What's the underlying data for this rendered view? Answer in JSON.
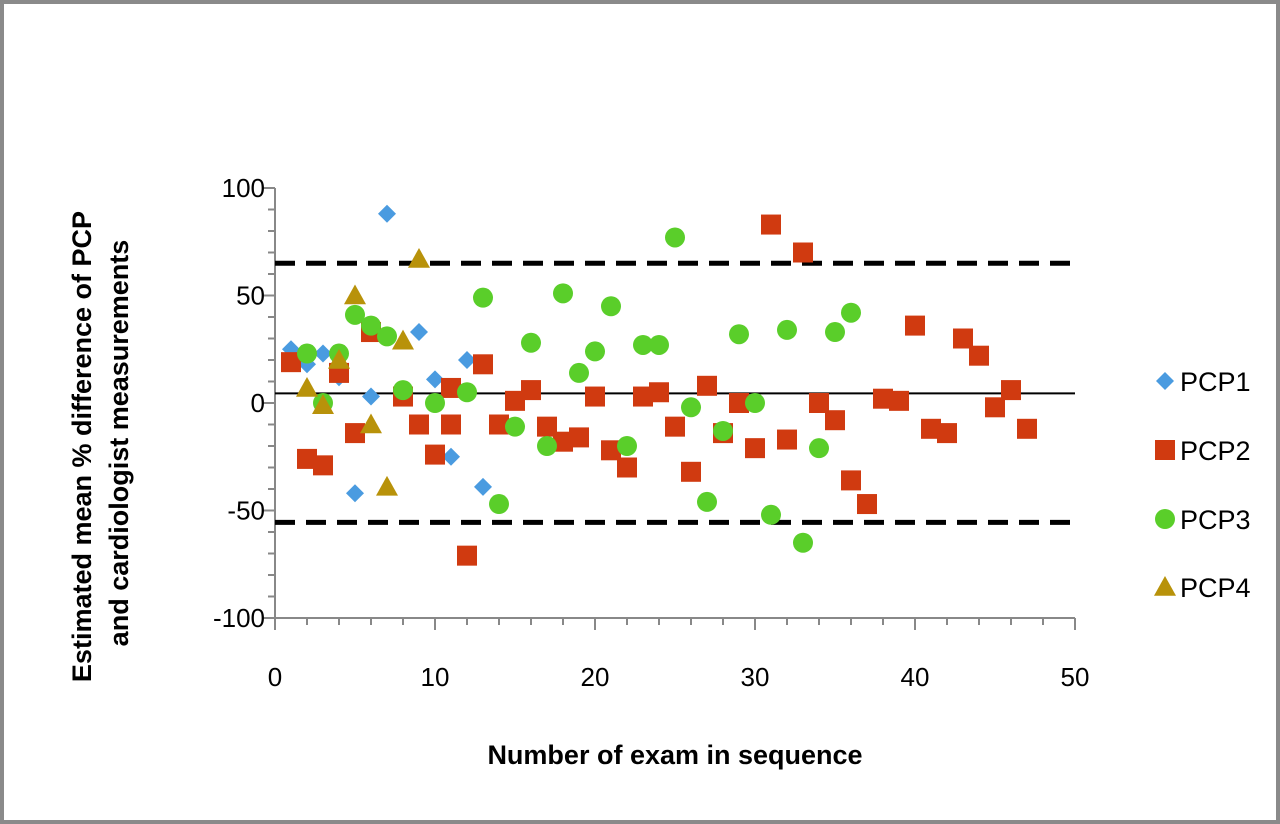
{
  "chart_data": {
    "type": "scatter",
    "title": "",
    "xlabel": "Number of exam in sequence",
    "ylabel_lines": [
      "Estimated mean % difference of PCP",
      "and cardiologist measurements"
    ],
    "xlim": [
      0,
      50
    ],
    "ylim": [
      -100,
      100
    ],
    "x_ticks": [
      0,
      10,
      20,
      30,
      40,
      50
    ],
    "y_ticks": [
      100,
      50,
      0,
      -50,
      -100
    ],
    "x_tick_labels": [
      "0",
      "10",
      "20",
      "30",
      "40",
      "50"
    ],
    "y_tick_labels": [
      "100",
      "50",
      "0",
      "-50",
      "-100"
    ],
    "mean_line": 4.5,
    "limits_of_agreement": [
      65,
      -55.5
    ],
    "legend_position": "right",
    "grid": false,
    "series": [
      {
        "name": "PCP1",
        "marker": "diamond",
        "color": "#4a9be0",
        "points": [
          [
            1,
            25
          ],
          [
            2,
            18
          ],
          [
            3,
            23
          ],
          [
            4,
            12
          ],
          [
            5,
            -42
          ],
          [
            6,
            3
          ],
          [
            7,
            88
          ],
          [
            9,
            33
          ],
          [
            10,
            11
          ],
          [
            11,
            -25
          ],
          [
            12,
            20
          ],
          [
            13,
            -39
          ]
        ]
      },
      {
        "name": "PCP2",
        "marker": "square",
        "color": "#d03a10",
        "points": [
          [
            1,
            19
          ],
          [
            2,
            -26
          ],
          [
            3,
            -29
          ],
          [
            4,
            14
          ],
          [
            5,
            -14
          ],
          [
            6,
            33
          ],
          [
            8,
            3
          ],
          [
            9,
            -10
          ],
          [
            10,
            -24
          ],
          [
            11,
            7
          ],
          [
            11,
            -10
          ],
          [
            12,
            -71
          ],
          [
            13,
            18
          ],
          [
            14,
            -10
          ],
          [
            15,
            1
          ],
          [
            16,
            6
          ],
          [
            17,
            -11
          ],
          [
            18,
            -18
          ],
          [
            19,
            -16
          ],
          [
            20,
            3
          ],
          [
            21,
            -22
          ],
          [
            22,
            -30
          ],
          [
            23,
            3
          ],
          [
            24,
            5
          ],
          [
            25,
            -11
          ],
          [
            26,
            -32
          ],
          [
            27,
            8
          ],
          [
            28,
            -14
          ],
          [
            29,
            0
          ],
          [
            30,
            -21
          ],
          [
            31,
            83
          ],
          [
            32,
            -17
          ],
          [
            33,
            70
          ],
          [
            34,
            0
          ],
          [
            35,
            -8
          ],
          [
            36,
            -36
          ],
          [
            37,
            -47
          ],
          [
            38,
            2
          ],
          [
            39,
            1
          ],
          [
            40,
            36
          ],
          [
            41,
            -12
          ],
          [
            42,
            -14
          ],
          [
            43,
            30
          ],
          [
            44,
            22
          ],
          [
            45,
            -2
          ],
          [
            46,
            6
          ],
          [
            47,
            -12
          ]
        ]
      },
      {
        "name": "PCP3",
        "marker": "circle",
        "color": "#5ace2a",
        "points": [
          [
            2,
            23
          ],
          [
            3,
            0
          ],
          [
            4,
            23
          ],
          [
            5,
            41
          ],
          [
            6,
            36
          ],
          [
            7,
            31
          ],
          [
            8,
            6
          ],
          [
            10,
            0
          ],
          [
            12,
            5
          ],
          [
            13,
            49
          ],
          [
            14,
            -47
          ],
          [
            15,
            -11
          ],
          [
            16,
            28
          ],
          [
            17,
            -20
          ],
          [
            18,
            51
          ],
          [
            19,
            14
          ],
          [
            20,
            24
          ],
          [
            21,
            45
          ],
          [
            22,
            -20
          ],
          [
            23,
            27
          ],
          [
            24,
            27
          ],
          [
            25,
            77
          ],
          [
            26,
            -2
          ],
          [
            27,
            -46
          ],
          [
            28,
            -13
          ],
          [
            29,
            32
          ],
          [
            30,
            0
          ],
          [
            31,
            -52
          ],
          [
            32,
            34
          ],
          [
            33,
            -65
          ],
          [
            34,
            -21
          ],
          [
            35,
            33
          ],
          [
            36,
            42
          ]
        ]
      },
      {
        "name": "PCP4",
        "marker": "triangle",
        "color": "#b8920a",
        "points": [
          [
            2,
            7
          ],
          [
            3,
            -1
          ],
          [
            4,
            20
          ],
          [
            5,
            50
          ],
          [
            6,
            -10
          ],
          [
            7,
            -39
          ],
          [
            8,
            29
          ],
          [
            9,
            67
          ]
        ]
      }
    ]
  }
}
